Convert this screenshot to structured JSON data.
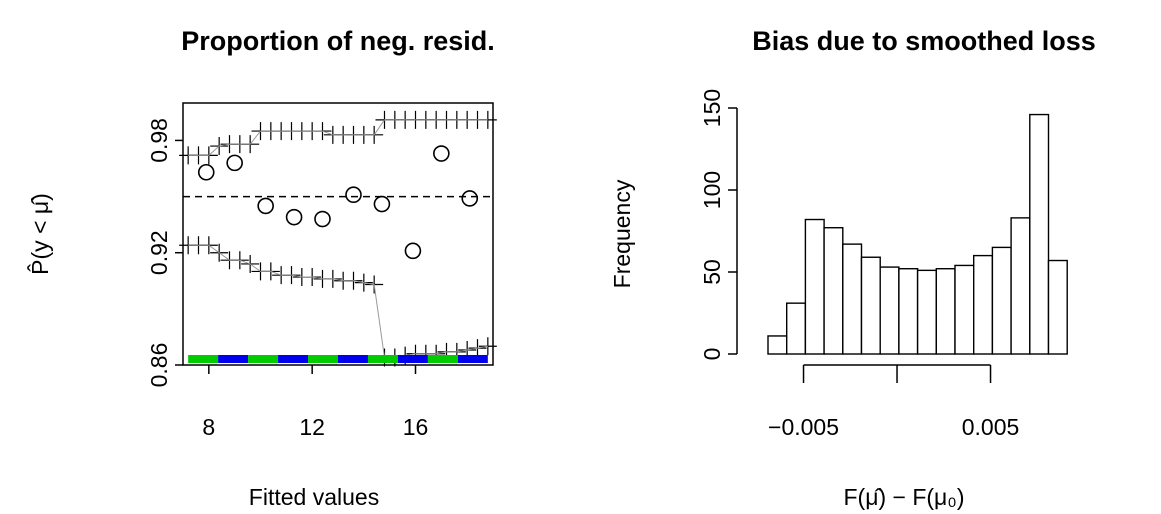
{
  "chart_data": [
    {
      "type": "scatter",
      "title": "Proportion of neg. resid.",
      "xlabel": "Fitted values",
      "ylabel": "P̂(y < μ̂)",
      "xlim": [
        7.0,
        19.0
      ],
      "ylim": [
        0.86,
        1.0
      ],
      "x_ticks": [
        "8",
        "12",
        "16"
      ],
      "x_tick_values": [
        8,
        12,
        16
      ],
      "y_ticks": [
        "0.86",
        "0.92",
        "0.98"
      ],
      "y_tick_values": [
        0.86,
        0.92,
        0.98
      ],
      "reference_line": 0.95,
      "series": [
        {
          "role": "points",
          "x": [
            7.9,
            9.0,
            10.2,
            11.3,
            12.4,
            13.6,
            14.7,
            15.9,
            17.0,
            18.1
          ],
          "y": [
            0.963,
            0.968,
            0.945,
            0.939,
            0.938,
            0.951,
            0.946,
            0.921,
            0.973,
            0.949
          ]
        },
        {
          "role": "upper-band",
          "x": [
            7.2,
            7.6,
            8.0,
            8.4,
            8.8,
            9.2,
            9.6,
            10.0,
            10.4,
            10.8,
            11.2,
            11.6,
            12.0,
            12.4,
            12.8,
            13.2,
            13.6,
            14.0,
            14.4,
            14.8,
            15.2,
            15.6,
            16.0,
            16.4,
            16.8,
            17.2,
            17.6,
            18.0,
            18.4,
            18.8
          ],
          "y": [
            0.972,
            0.972,
            0.972,
            0.977,
            0.978,
            0.978,
            0.978,
            0.985,
            0.985,
            0.985,
            0.985,
            0.985,
            0.985,
            0.985,
            0.983,
            0.983,
            0.983,
            0.983,
            0.983,
            0.991,
            0.991,
            0.991,
            0.991,
            0.991,
            0.991,
            0.991,
            0.991,
            0.991,
            0.991,
            0.991
          ]
        },
        {
          "role": "lower-band",
          "x": [
            7.2,
            7.6,
            8.0,
            8.4,
            8.8,
            9.2,
            9.6,
            10.0,
            10.4,
            10.8,
            11.2,
            11.6,
            12.0,
            12.4,
            12.8,
            13.2,
            13.6,
            14.0,
            14.4,
            14.8,
            15.2,
            15.6,
            16.0,
            16.4,
            16.8,
            17.2,
            17.6,
            18.0,
            18.4,
            18.8
          ],
          "y": [
            0.924,
            0.924,
            0.924,
            0.92,
            0.916,
            0.916,
            0.914,
            0.91,
            0.91,
            0.908,
            0.908,
            0.907,
            0.907,
            0.906,
            0.906,
            0.905,
            0.905,
            0.904,
            0.903,
            0.864,
            0.864,
            0.865,
            0.866,
            0.866,
            0.866,
            0.867,
            0.867,
            0.868,
            0.869,
            0.87
          ]
        }
      ],
      "rug_colors": [
        "#00cc00",
        "#0000ee"
      ],
      "rug_segments": 10
    },
    {
      "type": "bar",
      "title": "Bias due to smoothed loss",
      "xlabel": "F(μ̂) − F(μ₀)",
      "ylabel": "Frequency",
      "bin_width": 0.001,
      "bin_start": -0.0069,
      "values": [
        11,
        31,
        82,
        77,
        67,
        59,
        53,
        52,
        51,
        52,
        54,
        60,
        65,
        83,
        146,
        57
      ],
      "ylim": [
        0,
        150
      ],
      "y_ticks": [
        "0",
        "50",
        "100",
        "150"
      ],
      "y_tick_values": [
        0,
        50,
        100,
        150
      ],
      "x_ticks": [
        "−0.005",
        "0.005"
      ],
      "x_tick_values": [
        -0.005,
        0.005
      ],
      "x_axis_extent": [
        -0.005,
        0.005
      ]
    }
  ]
}
